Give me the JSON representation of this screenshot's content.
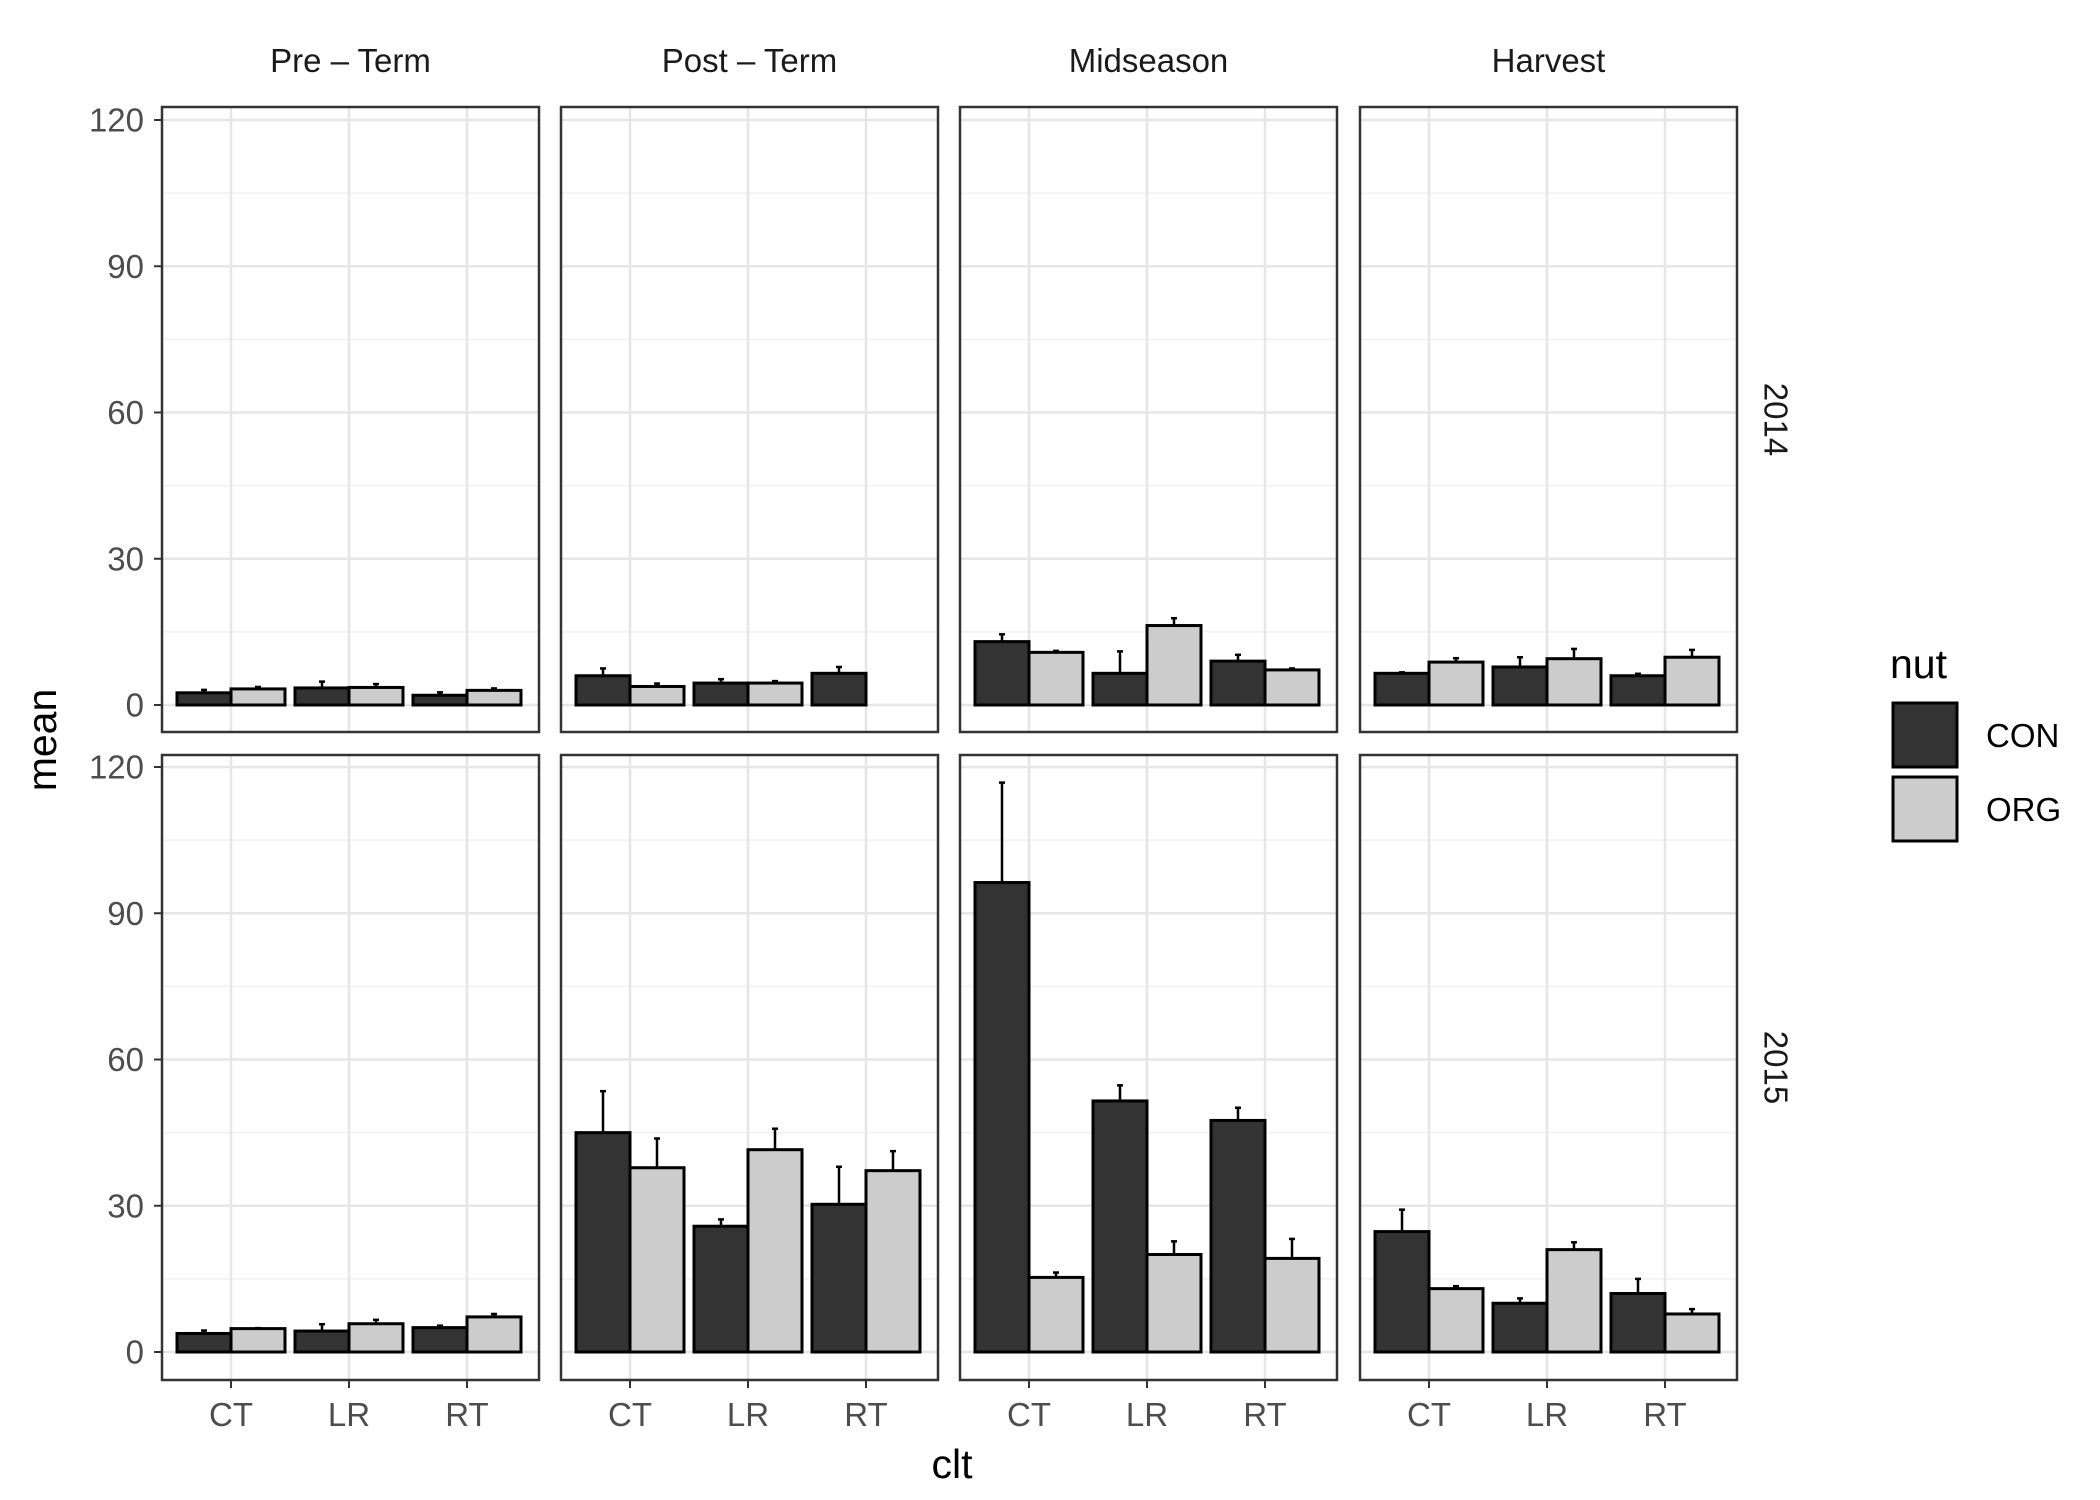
{
  "chart_data": {
    "type": "bar",
    "xlabel": "clt",
    "ylabel": "mean",
    "ylim": [
      0,
      120
    ],
    "yticks": [
      0,
      30,
      60,
      90,
      120
    ],
    "categories": [
      "CT",
      "LR",
      "RT"
    ],
    "columns": [
      "Pre – Term",
      "Post – Term",
      "Midseason",
      "Harvest"
    ],
    "rows": [
      "2014",
      "2015"
    ],
    "legend": {
      "title": "nut",
      "position": "right",
      "items": [
        {
          "name": "CON",
          "color": "#333333"
        },
        {
          "name": "ORG",
          "color": "#cccccc"
        }
      ]
    },
    "grid": true,
    "error_bars": "upper",
    "panels": [
      {
        "row": "2014",
        "column": "Pre – Term",
        "series": [
          {
            "name": "CON",
            "values": [
              2.5,
              3.5,
              2.0
            ],
            "err": [
              0.6,
              1.3,
              0.6
            ]
          },
          {
            "name": "ORG",
            "values": [
              3.3,
              3.6,
              3.0
            ],
            "err": [
              0.4,
              0.7,
              0.4
            ]
          }
        ]
      },
      {
        "row": "2014",
        "column": "Post – Term",
        "series": [
          {
            "name": "CON",
            "values": [
              6.0,
              4.5,
              6.5
            ],
            "err": [
              1.5,
              0.8,
              1.3
            ]
          },
          {
            "name": "ORG",
            "values": [
              3.8,
              4.5,
              null
            ],
            "err": [
              0.6,
              0.4,
              null
            ]
          }
        ]
      },
      {
        "row": "2014",
        "column": "Midseason",
        "series": [
          {
            "name": "CON",
            "values": [
              13.0,
              6.5,
              9.0
            ],
            "err": [
              1.5,
              4.5,
              1.3
            ]
          },
          {
            "name": "ORG",
            "values": [
              10.8,
              16.3,
              7.2
            ],
            "err": [
              0.3,
              1.5,
              0.3
            ]
          }
        ]
      },
      {
        "row": "2014",
        "column": "Harvest",
        "series": [
          {
            "name": "CON",
            "values": [
              6.5,
              7.8,
              6.0
            ],
            "err": [
              0.2,
              2.0,
              0.4
            ]
          },
          {
            "name": "ORG",
            "values": [
              8.8,
              9.5,
              9.8
            ],
            "err": [
              0.8,
              2.0,
              1.5
            ]
          }
        ]
      },
      {
        "row": "2015",
        "column": "Pre – Term",
        "series": [
          {
            "name": "CON",
            "values": [
              3.8,
              4.3,
              5.0
            ],
            "err": [
              0.6,
              1.4,
              0.4
            ]
          },
          {
            "name": "ORG",
            "values": [
              4.8,
              5.8,
              7.2
            ],
            "err": [
              0.1,
              0.8,
              0.6
            ]
          }
        ]
      },
      {
        "row": "2015",
        "column": "Post – Term",
        "series": [
          {
            "name": "CON",
            "values": [
              45.0,
              25.8,
              30.3
            ],
            "err": [
              8.5,
              1.4,
              7.7
            ]
          },
          {
            "name": "ORG",
            "values": [
              37.8,
              41.5,
              37.2
            ],
            "err": [
              6.0,
              4.3,
              4.0
            ]
          }
        ]
      },
      {
        "row": "2015",
        "column": "Midseason",
        "series": [
          {
            "name": "CON",
            "values": [
              96.3,
              51.5,
              47.5
            ],
            "err": [
              20.5,
              3.2,
              2.6
            ]
          },
          {
            "name": "ORG",
            "values": [
              15.3,
              20.0,
              19.2
            ],
            "err": [
              1.0,
              2.7,
              4.0
            ]
          }
        ]
      },
      {
        "row": "2015",
        "column": "Harvest",
        "series": [
          {
            "name": "CON",
            "values": [
              24.7,
              10.0,
              12.0
            ],
            "err": [
              4.5,
              1.0,
              3.0
            ]
          },
          {
            "name": "ORG",
            "values": [
              13.0,
              21.0,
              7.8
            ],
            "err": [
              0.5,
              1.5,
              1.0
            ]
          }
        ]
      }
    ]
  }
}
